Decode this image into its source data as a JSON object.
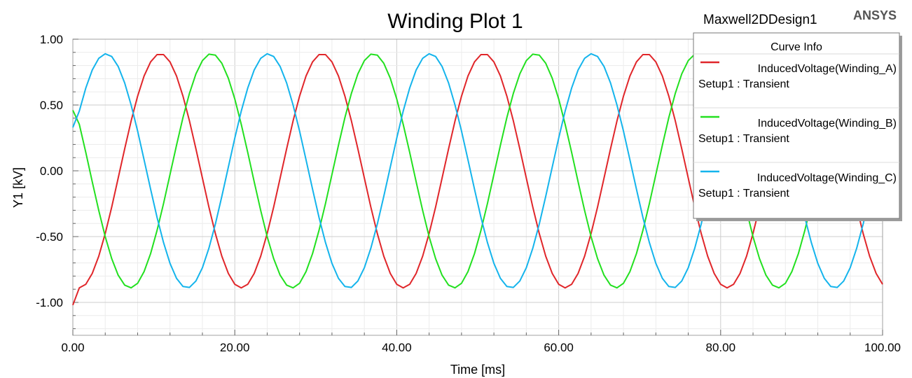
{
  "header": {
    "title": "Winding Plot 1",
    "design_name": "Maxwell2DDesign1",
    "brand": "ANSYS"
  },
  "legend": {
    "heading": "Curve Info",
    "entries": [
      {
        "name": "InducedVoltage(Winding_A)",
        "setup": "Setup1 : Transient",
        "color": "#e0262a"
      },
      {
        "name": "InducedVoltage(Winding_B)",
        "setup": "Setup1 : Transient",
        "color": "#22e01f"
      },
      {
        "name": "InducedVoltage(Winding_C)",
        "setup": "Setup1 : Transient",
        "color": "#14b4ec"
      }
    ]
  },
  "chart_data": {
    "type": "line",
    "title": "Winding Plot 1",
    "xlabel": "Time [ms]",
    "ylabel": "Y1 [kV]",
    "xlim": [
      0,
      100
    ],
    "ylim": [
      -1.25,
      1.0
    ],
    "x_ticks": [
      "0.00",
      "20.00",
      "40.00",
      "60.00",
      "80.00",
      "100.00"
    ],
    "y_ticks": [
      "1.00",
      "0.50",
      "0.00",
      "-0.50",
      "-1.00"
    ],
    "grid": true,
    "legend_position": "top-right",
    "waveform": {
      "amplitude_kV": 0.89,
      "period_ms": 20
    },
    "series": [
      {
        "name": "InducedVoltage(Winding_A)",
        "color": "#e0262a",
        "peaks_ms": [
          10.8,
          30.8,
          50.8,
          70.8,
          90.8
        ],
        "troughs_ms": [
          0.8,
          20.8,
          40.8,
          60.8,
          80.8
        ],
        "start_value": -1.02
      },
      {
        "name": "InducedVoltage(Winding_B)",
        "color": "#22e01f",
        "peaks_ms": [
          17.1,
          37.1,
          57.1,
          77.1,
          97.1
        ],
        "troughs_ms": [
          7.1,
          27.1,
          47.1,
          67.1,
          87.1
        ],
        "start_value": 0.46
      },
      {
        "name": "InducedVoltage(Winding_C)",
        "color": "#14b4ec",
        "peaks_ms": [
          4.1,
          24.1,
          44.1,
          64.1,
          84.1
        ],
        "troughs_ms": [
          14.1,
          34.1,
          54.1,
          74.1,
          94.1
        ],
        "start_value": 0.33
      }
    ]
  }
}
